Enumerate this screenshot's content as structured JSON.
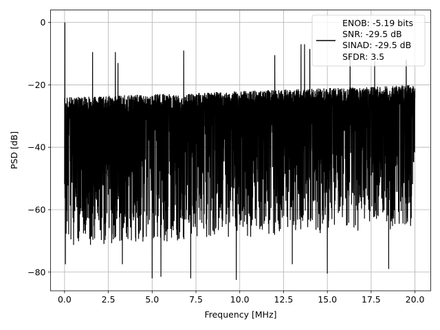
{
  "chart_data": {
    "type": "line",
    "title": "",
    "xlabel": "Frequency [MHz]",
    "ylabel": "PSD [dB]",
    "xlim": [
      -0.8,
      20.9
    ],
    "ylim": [
      -86,
      4
    ],
    "xticks": [
      0.0,
      2.5,
      5.0,
      7.5,
      10.0,
      12.5,
      15.0,
      17.5,
      20.0
    ],
    "xtick_labels": [
      "0.0",
      "2.5",
      "5.0",
      "7.5",
      "10.0",
      "12.5",
      "15.0",
      "17.5",
      "20.0"
    ],
    "yticks": [
      0,
      -20,
      -40,
      -60,
      -80
    ],
    "ytick_labels": [
      "0",
      "−20",
      "−40",
      "−60",
      "−80"
    ],
    "grid": true,
    "legend_position": "top-right",
    "series": [
      {
        "name": "ENOB: -5.19 bits\nSNR: -29.5 dB\nSINAD: -29.5 dB\nSFDR: 3.5",
        "color": "#000000",
        "x_range": [
          0.0,
          20.0
        ],
        "num_points": 4000,
        "noise_floor_upper_db": [
          -24,
          -20
        ],
        "noise_floor_lower_db": [
          -64,
          -58
        ],
        "peaks": [
          {
            "x": 0.02,
            "y": 0
          },
          {
            "x": 1.6,
            "y": -9.5
          },
          {
            "x": 2.9,
            "y": -9.5
          },
          {
            "x": 3.05,
            "y": -13
          },
          {
            "x": 6.8,
            "y": -9
          },
          {
            "x": 12.0,
            "y": -10.5
          },
          {
            "x": 13.5,
            "y": -7
          },
          {
            "x": 13.7,
            "y": -7
          },
          {
            "x": 14.0,
            "y": -8.5
          },
          {
            "x": 16.3,
            "y": -10.5
          },
          {
            "x": 17.7,
            "y": -12.5
          },
          {
            "x": 19.5,
            "y": -12
          }
        ],
        "dips": [
          {
            "x": 0.05,
            "y": -77.5
          },
          {
            "x": 3.3,
            "y": -77.5
          },
          {
            "x": 5.0,
            "y": -82
          },
          {
            "x": 5.5,
            "y": -81.5
          },
          {
            "x": 7.2,
            "y": -82
          },
          {
            "x": 9.8,
            "y": -82.5
          },
          {
            "x": 13.0,
            "y": -77.5
          },
          {
            "x": 15.0,
            "y": -80.5
          },
          {
            "x": 18.5,
            "y": -79
          }
        ]
      }
    ],
    "legend_lines": [
      "ENOB: -5.19 bits",
      "SNR: -29.5 dB",
      "SINAD: -29.5 dB",
      "SFDR: 3.5"
    ]
  }
}
